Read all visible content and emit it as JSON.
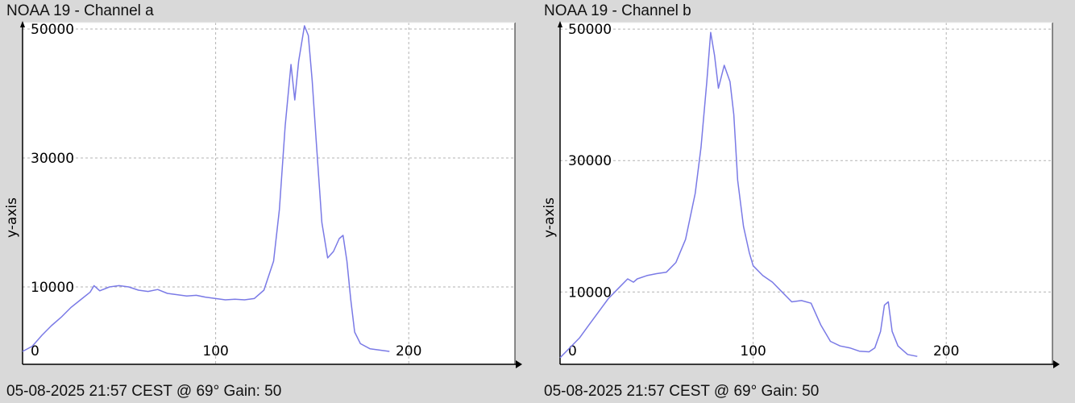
{
  "charts": [
    {
      "title": "NOAA 19 - Channel a",
      "footer": "05-08-2025 21:57 CEST @ 69° Gain: 50"
    },
    {
      "title": "NOAA 19 - Channel b",
      "footer": "05-08-2025 21:57 CEST @ 69° Gain: 50"
    }
  ],
  "colors": {
    "line": "#7a7ae6",
    "grid": "#b3b3b3",
    "background": "#ffffff",
    "frame": "#d9d9d9"
  },
  "chart_data": [
    {
      "type": "line",
      "title": "NOAA 19 - Channel a",
      "xlabel": "",
      "ylabel": "y-axis",
      "xlim": [
        0,
        255
      ],
      "ylim": [
        -2000,
        51000
      ],
      "xticks": [
        0,
        100,
        200
      ],
      "yticks": [
        10000,
        30000,
        50000
      ],
      "grid": true,
      "series": [
        {
          "x": [
            0,
            5,
            10,
            15,
            20,
            25,
            30,
            35,
            37,
            40,
            45,
            50,
            55,
            60,
            65,
            70,
            75,
            80,
            85,
            90,
            95,
            100,
            105,
            110,
            115,
            120,
            125,
            130,
            133,
            136,
            139,
            141,
            143,
            146,
            148,
            150,
            152,
            155,
            158,
            161,
            164,
            166,
            168,
            170,
            172,
            175,
            180,
            185,
            190
          ],
          "y": [
            0,
            800,
            2500,
            4000,
            5300,
            6800,
            8000,
            9200,
            10200,
            9400,
            10000,
            10200,
            10000,
            9500,
            9300,
            9600,
            9000,
            8800,
            8600,
            8700,
            8400,
            8200,
            8000,
            8100,
            8000,
            8200,
            9500,
            14000,
            22000,
            35000,
            44500,
            39000,
            45000,
            50500,
            49000,
            42000,
            33000,
            20000,
            14500,
            15500,
            17500,
            18000,
            14000,
            8000,
            3000,
            1200,
            400,
            200,
            0
          ]
        }
      ]
    },
    {
      "type": "line",
      "title": "NOAA 19 - Channel b",
      "xlabel": "",
      "ylabel": "y-axis",
      "xlim": [
        0,
        255
      ],
      "ylim": [
        -1000,
        51000
      ],
      "xticks": [
        0,
        100,
        200
      ],
      "yticks": [
        10000,
        30000,
        50000
      ],
      "grid": true,
      "series": [
        {
          "x": [
            0,
            5,
            10,
            15,
            20,
            25,
            30,
            35,
            38,
            40,
            45,
            50,
            55,
            60,
            65,
            70,
            73,
            76,
            78,
            80,
            82,
            85,
            88,
            90,
            92,
            95,
            98,
            100,
            105,
            110,
            115,
            120,
            125,
            130,
            135,
            140,
            145,
            150,
            155,
            160,
            163,
            166,
            168,
            170,
            172,
            175,
            180,
            185
          ],
          "y": [
            0,
            1500,
            3000,
            5000,
            7000,
            9000,
            10500,
            12000,
            11500,
            12000,
            12500,
            12800,
            13000,
            14500,
            18000,
            25000,
            32000,
            42000,
            49500,
            46000,
            41000,
            44500,
            42000,
            37000,
            27000,
            20000,
            16000,
            14000,
            12500,
            11500,
            10000,
            8500,
            8700,
            8300,
            5000,
            2500,
            1800,
            1500,
            1000,
            900,
            1500,
            4000,
            8000,
            8500,
            4000,
            1800,
            500,
            200
          ]
        }
      ]
    }
  ]
}
